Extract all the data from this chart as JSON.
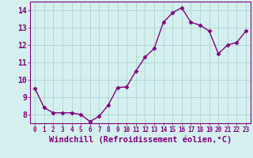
{
  "x": [
    0,
    1,
    2,
    3,
    4,
    5,
    6,
    7,
    8,
    9,
    10,
    11,
    12,
    13,
    14,
    15,
    16,
    17,
    18,
    19,
    20,
    21,
    22,
    23
  ],
  "y": [
    9.5,
    8.4,
    8.1,
    8.1,
    8.1,
    8.0,
    7.6,
    7.9,
    8.55,
    9.55,
    9.6,
    10.5,
    11.3,
    11.8,
    13.3,
    13.85,
    14.15,
    13.3,
    13.15,
    12.8,
    11.5,
    12.0,
    12.15,
    12.8
  ],
  "line_color": "#800080",
  "marker": "D",
  "marker_size": 2.5,
  "bg_color": "#d4f0ee",
  "grid_color": "#b0d8d4",
  "xlabel": "Windchill (Refroidissement éolien,°C)",
  "xlabel_fontsize": 7.5,
  "ylim": [
    7.5,
    14.5
  ],
  "xlim": [
    -0.5,
    23.5
  ],
  "yticks": [
    8,
    9,
    10,
    11,
    12,
    13,
    14
  ],
  "xticks": [
    0,
    1,
    2,
    3,
    4,
    5,
    6,
    7,
    8,
    9,
    10,
    11,
    12,
    13,
    14,
    15,
    16,
    17,
    18,
    19,
    20,
    21,
    22,
    23
  ],
  "xtick_fontsize": 5.5,
  "ytick_fontsize": 7,
  "line_width": 1.0
}
